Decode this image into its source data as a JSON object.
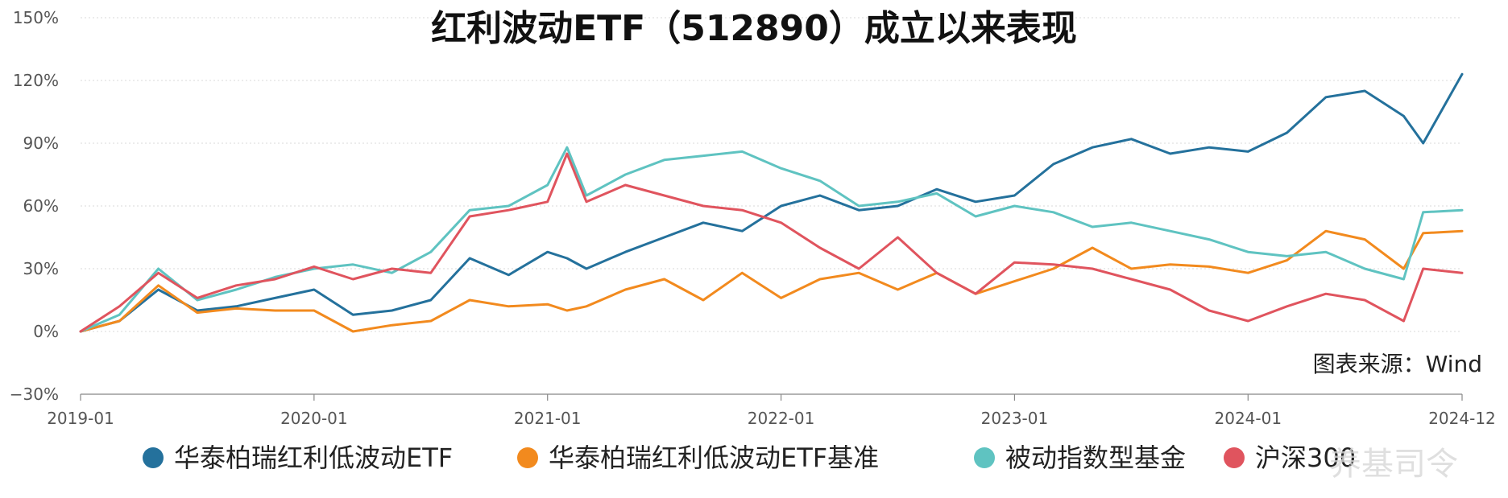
{
  "chart_data": {
    "type": "line",
    "title": "红利波动ETF（512890）成立以来表现",
    "source": "图表来源：Wind",
    "watermark": "养基司令",
    "x_tick_labels": [
      "2019-01",
      "2020-01",
      "2021-01",
      "2022-01",
      "2023-01",
      "2024-01",
      "2024-12"
    ],
    "x_tick_dates": [
      "2019-01",
      "2020-01",
      "2021-01",
      "2022-01",
      "2023-01",
      "2024-01",
      "2024-12"
    ],
    "x_range": [
      "2019-01",
      "2024-12"
    ],
    "y_tick_labels": [
      "−30%",
      "0%",
      "30%",
      "60%",
      "90%",
      "120%",
      "150%"
    ],
    "y_tick_values": [
      -30,
      0,
      30,
      60,
      90,
      120,
      150
    ],
    "ylim": [
      -30,
      150
    ],
    "y_unit": "%",
    "grid": true,
    "legend_position": "bottom",
    "colors": [
      "#24719C",
      "#F28A1E",
      "#5FC3C1",
      "#E0545E"
    ],
    "x": [
      "2019-01",
      "2019-03",
      "2019-05",
      "2019-07",
      "2019-09",
      "2019-11",
      "2020-01",
      "2020-03",
      "2020-05",
      "2020-07",
      "2020-09",
      "2020-11",
      "2021-01",
      "2021-02",
      "2021-03",
      "2021-05",
      "2021-07",
      "2021-09",
      "2021-11",
      "2022-01",
      "2022-03",
      "2022-05",
      "2022-07",
      "2022-09",
      "2022-11",
      "2023-01",
      "2023-03",
      "2023-05",
      "2023-07",
      "2023-09",
      "2023-11",
      "2024-01",
      "2024-03",
      "2024-05",
      "2024-07",
      "2024-09",
      "2024-10",
      "2024-12"
    ],
    "series": [
      {
        "name": "华泰柏瑞红利低波动ETF",
        "values": [
          0,
          5,
          20,
          10,
          12,
          16,
          20,
          8,
          10,
          15,
          35,
          27,
          38,
          35,
          30,
          38,
          45,
          52,
          48,
          60,
          65,
          58,
          60,
          68,
          62,
          65,
          80,
          88,
          92,
          85,
          88,
          86,
          95,
          112,
          115,
          103,
          90,
          123
        ]
      },
      {
        "name": "华泰柏瑞红利低波动ETF基准",
        "values": [
          0,
          5,
          22,
          9,
          11,
          10,
          10,
          0,
          3,
          5,
          15,
          12,
          13,
          10,
          12,
          20,
          25,
          15,
          28,
          16,
          25,
          28,
          20,
          28,
          18,
          24,
          30,
          40,
          30,
          32,
          31,
          28,
          34,
          48,
          44,
          30,
          47,
          48
        ]
      },
      {
        "name": "被动指数型基金",
        "values": [
          0,
          8,
          30,
          15,
          20,
          26,
          30,
          32,
          28,
          38,
          58,
          60,
          70,
          88,
          65,
          75,
          82,
          84,
          86,
          78,
          72,
          60,
          62,
          66,
          55,
          60,
          57,
          50,
          52,
          48,
          44,
          38,
          36,
          38,
          30,
          25,
          57,
          58
        ]
      },
      {
        "name": "沪深300",
        "values": [
          0,
          12,
          28,
          16,
          22,
          25,
          31,
          25,
          30,
          28,
          55,
          58,
          62,
          85,
          62,
          70,
          65,
          60,
          58,
          52,
          40,
          30,
          45,
          28,
          18,
          33,
          32,
          30,
          25,
          20,
          10,
          5,
          12,
          18,
          15,
          5,
          30,
          28
        ]
      }
    ]
  }
}
